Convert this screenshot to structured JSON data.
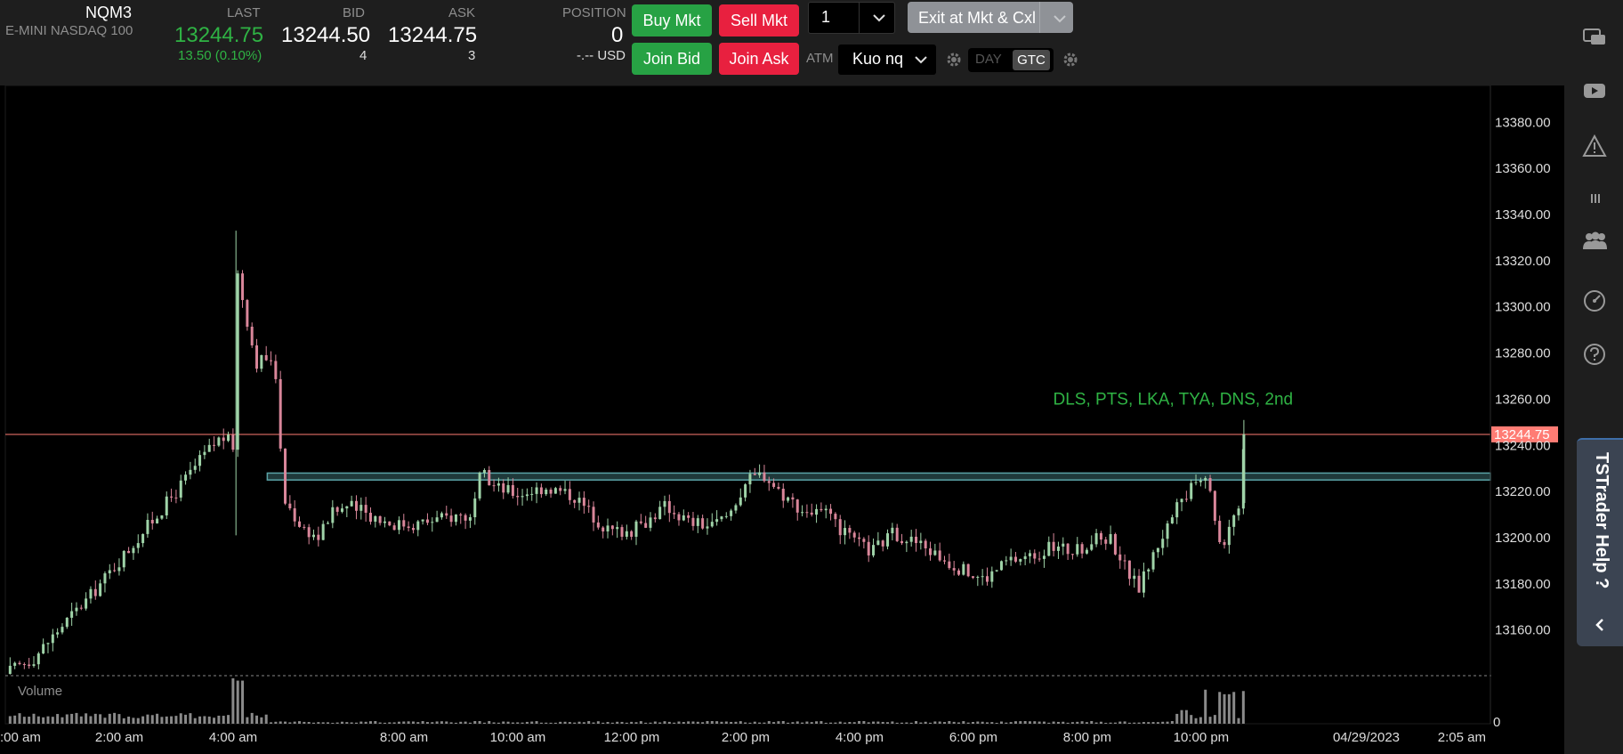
{
  "instrument": {
    "symbol": "NQM3",
    "description": "E-MINI NASDAQ 100"
  },
  "quote": {
    "last_label": "LAST",
    "last": "13244.75",
    "change": "13.50 (0.10%)",
    "bid_label": "BID",
    "bid": "13244.50",
    "bid_size": "4",
    "ask_label": "ASK",
    "ask": "13244.75",
    "ask_size": "3"
  },
  "position": {
    "label": "POSITION",
    "value": "0",
    "pnl": "-.-- USD"
  },
  "order_buttons": {
    "buy_mkt": "Buy Mkt",
    "sell_mkt": "Sell Mkt",
    "join_bid": "Join Bid",
    "join_ask": "Join Ask",
    "quantity": "1",
    "exit": "Exit at Mkt & Cxl",
    "atm_label": "ATM",
    "atm_strategy": "Kuo nq",
    "tif_day": "DAY",
    "tif_gtc": "GTC"
  },
  "sidebar": {
    "icons": [
      "chat-icon",
      "video-icon",
      "warning-icon",
      "menu-icon",
      "users-icon",
      "speedometer-icon",
      "help-icon"
    ],
    "help_tab": "TSTrader Help ?"
  },
  "colors": {
    "up": "#27a244",
    "down": "#e8203f",
    "candle_up": "#9fd3a8",
    "candle_down": "#d9869a",
    "price_line": "#ff7c74",
    "zone": "#5aa3a6",
    "annotation": "#2fb344"
  },
  "chart_data": {
    "type": "candlestick",
    "y_ticks": [
      "13380.00",
      "13360.00",
      "13340.00",
      "13320.00",
      "13300.00",
      "13280.00",
      "13260.00",
      "13240.00",
      "13220.00",
      "13200.00",
      "13180.00",
      "13160.00"
    ],
    "ylim": [
      13141,
      13394
    ],
    "x_ticks": [
      ":00 am",
      "2:00 am",
      "4:00 am",
      "8:00 am",
      "10:00 am",
      "12:00 pm",
      "2:00 pm",
      "4:00 pm",
      "6:00 pm",
      "8:00 pm",
      "10:00 pm",
      "04/29/2023",
      "2:05 am"
    ],
    "x_tick_hours": [
      0,
      2,
      4,
      7,
      9,
      11,
      13,
      15,
      17,
      19,
      21,
      23.9,
      26.08
    ],
    "current_price_label": "13244.75",
    "current_price": 13244.75,
    "zone": {
      "from_hour": 4.6,
      "low": 13225,
      "high": 13228
    },
    "annotation": "DLS, PTS, LKA, TYA, DNS, 2nd",
    "annotation_price": 13260,
    "annotation_hour": 18.4,
    "volume_label": "Volume",
    "volume_axis_label": "0",
    "price_path": [
      [
        0,
        13141
      ],
      [
        0.5,
        13148
      ],
      [
        1,
        13162
      ],
      [
        1.5,
        13175
      ],
      [
        2,
        13190
      ],
      [
        2.5,
        13205
      ],
      [
        3,
        13220
      ],
      [
        3.5,
        13236
      ],
      [
        3.8,
        13244
      ],
      [
        4,
        13240
      ],
      [
        4.05,
        13318
      ],
      [
        4.2,
        13300
      ],
      [
        4.4,
        13276
      ],
      [
        4.6,
        13278
      ],
      [
        4.8,
        13268
      ],
      [
        4.85,
        13218
      ],
      [
        5.2,
        13205
      ],
      [
        5.5,
        13200
      ],
      [
        5.7,
        13210
      ],
      [
        6,
        13214
      ],
      [
        6.4,
        13210
      ],
      [
        6.8,
        13206
      ],
      [
        7.2,
        13206
      ],
      [
        7.6,
        13208
      ],
      [
        8,
        13210
      ],
      [
        8.2,
        13208
      ],
      [
        8.35,
        13228
      ],
      [
        8.6,
        13222
      ],
      [
        9,
        13219
      ],
      [
        9.5,
        13222
      ],
      [
        10,
        13218
      ],
      [
        10.3,
        13210
      ],
      [
        10.6,
        13203
      ],
      [
        11,
        13203
      ],
      [
        11.3,
        13208
      ],
      [
        11.6,
        13214
      ],
      [
        12,
        13207
      ],
      [
        12.4,
        13205
      ],
      [
        12.7,
        13210
      ],
      [
        13,
        13224
      ],
      [
        13.3,
        13228
      ],
      [
        13.6,
        13220
      ],
      [
        14,
        13212
      ],
      [
        14.4,
        13210
      ],
      [
        14.8,
        13200
      ],
      [
        15.2,
        13194
      ],
      [
        15.6,
        13202
      ],
      [
        16,
        13198
      ],
      [
        16.4,
        13192
      ],
      [
        16.8,
        13186
      ],
      [
        17.2,
        13182
      ],
      [
        17.6,
        13190
      ],
      [
        18,
        13192
      ],
      [
        18.4,
        13196
      ],
      [
        18.8,
        13194
      ],
      [
        19.2,
        13200
      ],
      [
        19.4,
        13200
      ],
      [
        19.7,
        13186
      ],
      [
        19.9,
        13178
      ],
      [
        20.2,
        13195
      ],
      [
        20.5,
        13210
      ],
      [
        20.8,
        13220
      ],
      [
        21.05,
        13230
      ],
      [
        21.2,
        13215
      ],
      [
        21.35,
        13195
      ],
      [
        21.55,
        13210
      ],
      [
        21.7,
        13215
      ],
      [
        21.75,
        13244.75
      ]
    ],
    "volume_spikes": [
      [
        4.05,
        1.0
      ],
      [
        4.12,
        0.95
      ],
      [
        20.7,
        0.3
      ],
      [
        21.1,
        0.75
      ],
      [
        21.3,
        0.7
      ],
      [
        21.45,
        0.65
      ],
      [
        21.6,
        0.7
      ],
      [
        21.75,
        0.72
      ]
    ]
  }
}
